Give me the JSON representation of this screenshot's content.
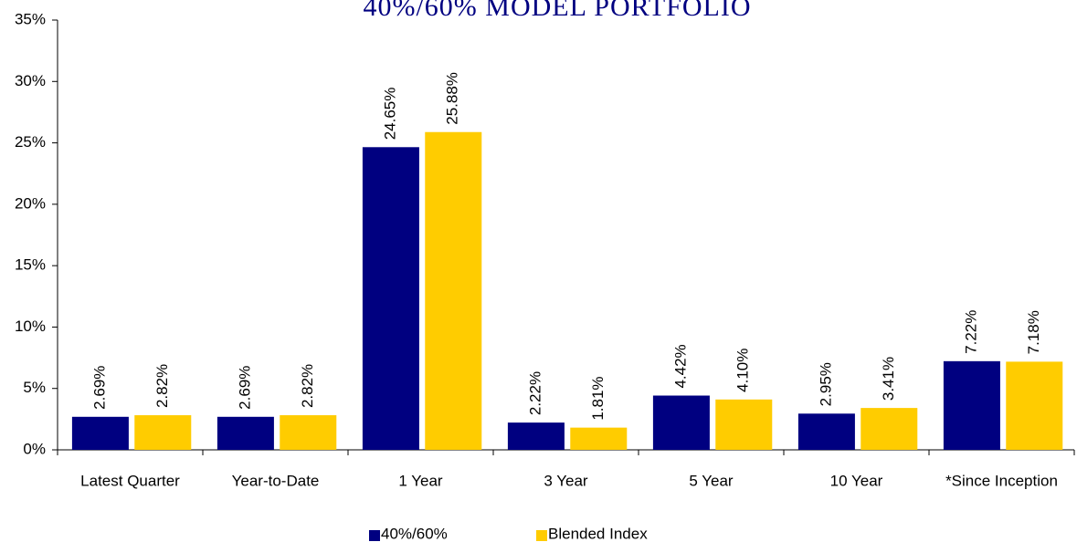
{
  "chart_data": {
    "type": "bar",
    "title": "40%/60% MODEL PORTFOLIO",
    "categories": [
      "Latest Quarter",
      "Year-to-Date",
      "1 Year",
      "3 Year",
      "5 Year",
      "10 Year",
      "*Since Inception"
    ],
    "series": [
      {
        "name": "40%/60%",
        "color": "#000080",
        "values": [
          2.69,
          2.69,
          24.65,
          2.22,
          4.42,
          2.95,
          7.22
        ],
        "value_labels": [
          "2.69%",
          "2.69%",
          "24.65%",
          "2.22%",
          "4.42%",
          "2.95%",
          "7.22%"
        ]
      },
      {
        "name": "Blended Index",
        "color": "#FFCC00",
        "values": [
          2.82,
          2.82,
          25.88,
          1.81,
          4.1,
          3.41,
          7.18
        ],
        "value_labels": [
          "2.82%",
          "2.82%",
          "25.88%",
          "1.81%",
          "4.10%",
          "3.41%",
          "7.18%"
        ]
      }
    ],
    "ylim": [
      0,
      35
    ],
    "yticks": [
      {
        "value": 0,
        "label": "0%"
      },
      {
        "value": 5,
        "label": "5%"
      },
      {
        "value": 10,
        "label": "10%"
      },
      {
        "value": 15,
        "label": "15%"
      },
      {
        "value": 20,
        "label": "20%"
      },
      {
        "value": 25,
        "label": "25%"
      },
      {
        "value": 30,
        "label": "30%"
      },
      {
        "value": 35,
        "label": "35%"
      }
    ],
    "grid": false,
    "legend": "bottom"
  }
}
